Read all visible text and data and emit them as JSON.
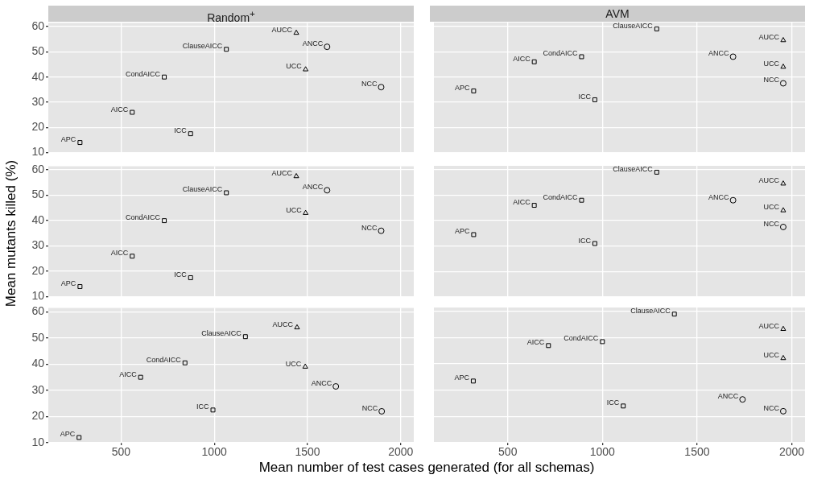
{
  "chart_data": [
    {
      "type": "scatter",
      "title": "Random$^{+}$",
      "xlim": [
        110,
        2070
      ],
      "ylim": [
        10,
        61.5
      ],
      "xticks": [
        500,
        1000,
        1500,
        2000
      ],
      "yticks": [
        10,
        20,
        30,
        40,
        50,
        60
      ],
      "grid": true,
      "legend": false,
      "tick_labels": "y",
      "series": [
        {
          "name": "APC",
          "color": "#000000",
          "marker": "square",
          "x": [
            280
          ],
          "values": [
            14
          ]
        },
        {
          "name": "AICC",
          "color": "#000000",
          "marker": "square",
          "x": [
            560
          ],
          "values": [
            26
          ]
        },
        {
          "name": "ICC",
          "color": "#000000",
          "marker": "square",
          "x": [
            873
          ],
          "values": [
            17.5
          ]
        },
        {
          "name": "CondAICC",
          "color": "#000000",
          "marker": "square",
          "x": [
            732
          ],
          "values": [
            40
          ]
        },
        {
          "name": "ClauseAICC",
          "color": "#000000",
          "marker": "square",
          "x": [
            1065
          ],
          "values": [
            51
          ]
        },
        {
          "name": "AUCC",
          "color": "#000000",
          "marker": "triangle",
          "x": [
            1440
          ],
          "values": [
            57.5
          ]
        },
        {
          "name": "ANCC",
          "color": "#000000",
          "marker": "circle",
          "x": [
            1605
          ],
          "values": [
            52
          ]
        },
        {
          "name": "UCC",
          "color": "#000000",
          "marker": "triangle",
          "x": [
            1490
          ],
          "values": [
            43
          ]
        },
        {
          "name": "NCC",
          "color": "#000000",
          "marker": "circle",
          "x": [
            1895
          ],
          "values": [
            36
          ]
        }
      ]
    },
    {
      "type": "scatter",
      "title": "AVM",
      "xlim": [
        110,
        2070
      ],
      "ylim": [
        10,
        61.5
      ],
      "xticks": [
        500,
        1000,
        1500,
        2000
      ],
      "yticks": [
        10,
        20,
        30,
        40,
        50,
        60
      ],
      "grid": true,
      "legend": false,
      "tick_labels": false,
      "series": [
        {
          "name": "APC",
          "color": "#000000",
          "marker": "square",
          "x": [
            320
          ],
          "values": [
            34.5
          ]
        },
        {
          "name": "AICC",
          "color": "#000000",
          "marker": "square",
          "x": [
            640
          ],
          "values": [
            46
          ]
        },
        {
          "name": "CondAICC",
          "color": "#000000",
          "marker": "square",
          "x": [
            890
          ],
          "values": [
            48
          ]
        },
        {
          "name": "ICC",
          "color": "#000000",
          "marker": "square",
          "x": [
            960
          ],
          "values": [
            31
          ]
        },
        {
          "name": "ClauseAICC",
          "color": "#000000",
          "marker": "square",
          "x": [
            1287
          ],
          "values": [
            59
          ]
        },
        {
          "name": "ANCC",
          "color": "#000000",
          "marker": "circle",
          "x": [
            1690
          ],
          "values": [
            48
          ]
        },
        {
          "name": "AUCC",
          "color": "#000000",
          "marker": "triangle",
          "x": [
            1955
          ],
          "values": [
            54.5
          ]
        },
        {
          "name": "UCC",
          "color": "#000000",
          "marker": "triangle",
          "x": [
            1955
          ],
          "values": [
            44
          ]
        },
        {
          "name": "NCC",
          "color": "#000000",
          "marker": "circle",
          "x": [
            1955
          ],
          "values": [
            37.5
          ]
        }
      ]
    },
    {
      "type": "scatter",
      "ylabel": "Mean mutants killed (%)",
      "xlim": [
        110,
        2070
      ],
      "ylim": [
        10,
        61.5
      ],
      "xticks": [
        500,
        1000,
        1500,
        2000
      ],
      "yticks": [
        10,
        20,
        30,
        40,
        50,
        60
      ],
      "grid": true,
      "legend": false,
      "tick_labels": "y",
      "series": [
        {
          "name": "APC",
          "color": "#000000",
          "marker": "square",
          "x": [
            280
          ],
          "values": [
            14
          ]
        },
        {
          "name": "AICC",
          "color": "#000000",
          "marker": "square",
          "x": [
            560
          ],
          "values": [
            26
          ]
        },
        {
          "name": "ICC",
          "color": "#000000",
          "marker": "square",
          "x": [
            873
          ],
          "values": [
            17.5
          ]
        },
        {
          "name": "CondAICC",
          "color": "#000000",
          "marker": "square",
          "x": [
            732
          ],
          "values": [
            40
          ]
        },
        {
          "name": "ClauseAICC",
          "color": "#000000",
          "marker": "square",
          "x": [
            1065
          ],
          "values": [
            51
          ]
        },
        {
          "name": "AUCC",
          "color": "#000000",
          "marker": "triangle",
          "x": [
            1440
          ],
          "values": [
            57.5
          ]
        },
        {
          "name": "ANCC",
          "color": "#000000",
          "marker": "circle",
          "x": [
            1605
          ],
          "values": [
            52
          ]
        },
        {
          "name": "UCC",
          "color": "#000000",
          "marker": "triangle",
          "x": [
            1490
          ],
          "values": [
            43
          ]
        },
        {
          "name": "NCC",
          "color": "#000000",
          "marker": "circle",
          "x": [
            1895
          ],
          "values": [
            36
          ]
        }
      ]
    },
    {
      "type": "scatter",
      "xlim": [
        110,
        2070
      ],
      "ylim": [
        10,
        61.5
      ],
      "xticks": [
        500,
        1000,
        1500,
        2000
      ],
      "yticks": [
        10,
        20,
        30,
        40,
        50,
        60
      ],
      "grid": true,
      "legend": false,
      "tick_labels": false,
      "series": [
        {
          "name": "APC",
          "color": "#000000",
          "marker": "square",
          "x": [
            320
          ],
          "values": [
            34.5
          ]
        },
        {
          "name": "AICC",
          "color": "#000000",
          "marker": "square",
          "x": [
            640
          ],
          "values": [
            46
          ]
        },
        {
          "name": "CondAICC",
          "color": "#000000",
          "marker": "square",
          "x": [
            890
          ],
          "values": [
            48
          ]
        },
        {
          "name": "ICC",
          "color": "#000000",
          "marker": "square",
          "x": [
            960
          ],
          "values": [
            31
          ]
        },
        {
          "name": "ClauseAICC",
          "color": "#000000",
          "marker": "square",
          "x": [
            1287
          ],
          "values": [
            59
          ]
        },
        {
          "name": "ANCC",
          "color": "#000000",
          "marker": "circle",
          "x": [
            1690
          ],
          "values": [
            48
          ]
        },
        {
          "name": "AUCC",
          "color": "#000000",
          "marker": "triangle",
          "x": [
            1955
          ],
          "values": [
            54.5
          ]
        },
        {
          "name": "UCC",
          "color": "#000000",
          "marker": "triangle",
          "x": [
            1955
          ],
          "values": [
            44
          ]
        },
        {
          "name": "NCC",
          "color": "#000000",
          "marker": "circle",
          "x": [
            1955
          ],
          "values": [
            37.5
          ]
        }
      ]
    },
    {
      "type": "scatter",
      "xlabel": "Mean number of test cases generated (for all schemas)",
      "xlim": [
        110,
        2070
      ],
      "ylim": [
        10,
        61.5
      ],
      "xticks": [
        500,
        1000,
        1500,
        2000
      ],
      "yticks": [
        10,
        20,
        30,
        40,
        50,
        60
      ],
      "grid": true,
      "legend": false,
      "series": [
        {
          "name": "APC",
          "color": "#000000",
          "marker": "square",
          "x": [
            275
          ],
          "values": [
            12
          ]
        },
        {
          "name": "AICC",
          "color": "#000000",
          "marker": "square",
          "x": [
            605
          ],
          "values": [
            35
          ]
        },
        {
          "name": "CondAICC",
          "color": "#000000",
          "marker": "square",
          "x": [
            843
          ],
          "values": [
            40.5
          ]
        },
        {
          "name": "ICC",
          "color": "#000000",
          "marker": "square",
          "x": [
            993
          ],
          "values": [
            22.5
          ]
        },
        {
          "name": "ClauseAICC",
          "color": "#000000",
          "marker": "square",
          "x": [
            1167
          ],
          "values": [
            50.5
          ]
        },
        {
          "name": "AUCC",
          "color": "#000000",
          "marker": "triangle",
          "x": [
            1444
          ],
          "values": [
            54
          ]
        },
        {
          "name": "UCC",
          "color": "#000000",
          "marker": "triangle",
          "x": [
            1488
          ],
          "values": [
            39
          ]
        },
        {
          "name": "ANCC",
          "color": "#000000",
          "marker": "circle",
          "x": [
            1652
          ],
          "values": [
            31.5
          ]
        },
        {
          "name": "NCC",
          "color": "#000000",
          "marker": "circle",
          "x": [
            1898
          ],
          "values": [
            22
          ]
        }
      ]
    },
    {
      "type": "scatter",
      "xlim": [
        110,
        2070
      ],
      "ylim": [
        10,
        61.5
      ],
      "xticks": [
        500,
        1000,
        1500,
        2000
      ],
      "yticks": [
        10,
        20,
        30,
        40,
        50,
        60
      ],
      "grid": true,
      "legend": false,
      "tick_labels": "x",
      "series": [
        {
          "name": "APC",
          "color": "#000000",
          "marker": "square",
          "x": [
            318
          ],
          "values": [
            33.5
          ]
        },
        {
          "name": "AICC",
          "color": "#000000",
          "marker": "square",
          "x": [
            715
          ],
          "values": [
            47
          ]
        },
        {
          "name": "CondAICC",
          "color": "#000000",
          "marker": "square",
          "x": [
            1000
          ],
          "values": [
            48.5
          ]
        },
        {
          "name": "ICC",
          "color": "#000000",
          "marker": "square",
          "x": [
            1110
          ],
          "values": [
            24
          ]
        },
        {
          "name": "ClauseAICC",
          "color": "#000000",
          "marker": "square",
          "x": [
            1380
          ],
          "values": [
            59
          ]
        },
        {
          "name": "AUCC",
          "color": "#000000",
          "marker": "triangle",
          "x": [
            1955
          ],
          "values": [
            53.3
          ]
        },
        {
          "name": "UCC",
          "color": "#000000",
          "marker": "triangle",
          "x": [
            1955
          ],
          "values": [
            42.2
          ]
        },
        {
          "name": "ANCC",
          "color": "#000000",
          "marker": "circle",
          "x": [
            1740
          ],
          "values": [
            26.5
          ]
        },
        {
          "name": "NCC",
          "color": "#000000",
          "marker": "circle",
          "x": [
            1955
          ],
          "values": [
            22
          ]
        }
      ]
    }
  ]
}
